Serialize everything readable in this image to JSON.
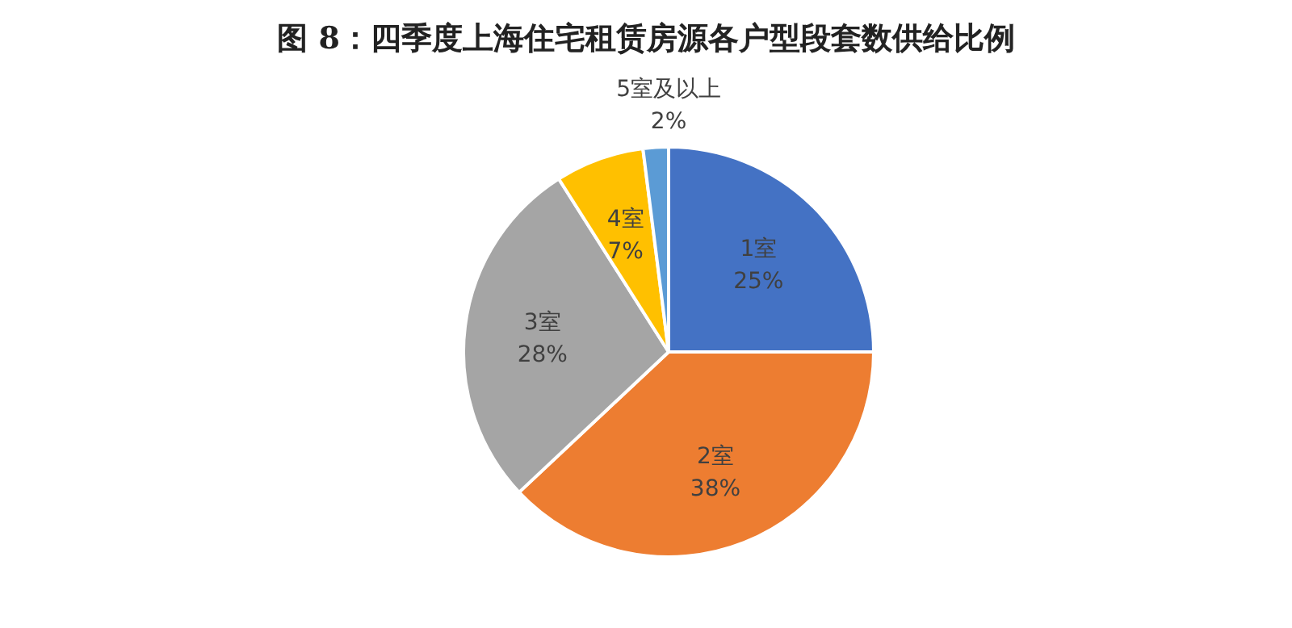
{
  "chart_data": {
    "type": "pie",
    "title": "图 8：四季度上海住宅租赁房源各户型段套数供给比例",
    "categories": [
      "1室",
      "2室",
      "3室",
      "4室",
      "5室及以上"
    ],
    "values": [
      25,
      38,
      28,
      7,
      2
    ],
    "colors": [
      "#4472c4",
      "#ed7d31",
      "#a5a5a5",
      "#ffc000",
      "#5b9bd5"
    ],
    "value_labels": [
      "25%",
      "38%",
      "28%",
      "7%",
      "2%"
    ]
  }
}
